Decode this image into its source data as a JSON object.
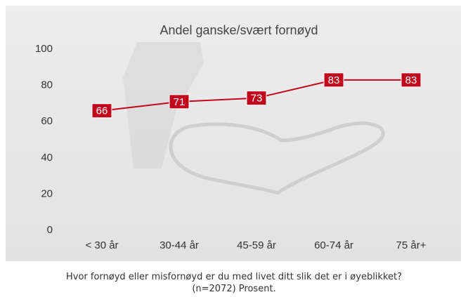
{
  "chart_data": {
    "type": "line",
    "title": "Andel ganske/svært fornøyd",
    "categories": [
      "< 30 år",
      "30-44 år",
      "45-59 år",
      "60-74 år",
      "75 år+"
    ],
    "values": [
      66,
      71,
      73,
      83,
      83
    ],
    "color": "#c0071c",
    "ylim": [
      0,
      100
    ],
    "yticks": [
      0,
      20,
      40,
      60,
      80,
      100
    ],
    "grid": false,
    "caption": [
      "Hvor fornøyd eller misfornøyd er du med livet ditt slik det er i øyeblikket?",
      "(n=2072) Prosent."
    ]
  }
}
